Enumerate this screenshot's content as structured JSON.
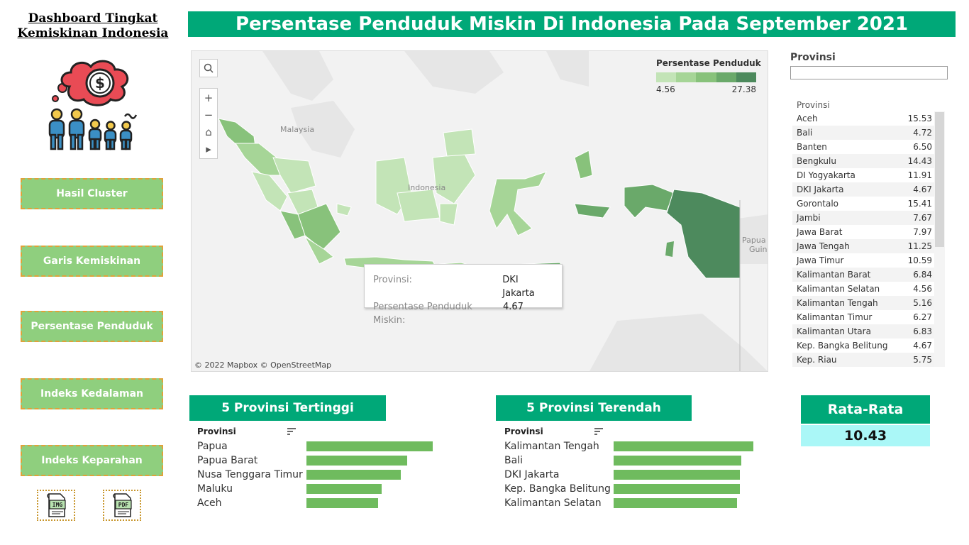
{
  "sidebar": {
    "title_line1": "Dashboard Tingkat",
    "title_line2": "Kemiskinan Indonesia",
    "nav": [
      {
        "label": "Hasil Cluster"
      },
      {
        "label": "Garis Kemiskinan"
      },
      {
        "label": "Persentase Penduduk"
      },
      {
        "label": "Indeks Kedalaman"
      },
      {
        "label": "Indeks Keparahan"
      }
    ],
    "export": {
      "img": "IMG",
      "pdf": "PDF"
    },
    "logo_icon": "poverty-people-money-icon"
  },
  "header": {
    "title": "Persentase Penduduk Miskin Di Indonesia Pada September 2021"
  },
  "map": {
    "legend_title": "Persentase Penduduk",
    "legend_min": "4.56",
    "legend_max": "27.38",
    "legend_colors": [
      "#c3e4b7",
      "#a6d597",
      "#88c27b",
      "#6aa96a",
      "#4d8a5d"
    ],
    "labels": {
      "malaysia": "Malaysia",
      "indonesia": "Indonesia",
      "papua": "Papua",
      "guinea": "Guine"
    },
    "credit": "© 2022 Mapbox  © OpenStreetMap",
    "tooltip": {
      "key1": "Provinsi:",
      "val1": "DKI Jakarta",
      "key2": "Persentase Penduduk Miskin:",
      "val2": "4.67"
    },
    "tools": [
      "search-icon",
      "zoom-in-icon",
      "zoom-out-icon",
      "home-icon",
      "play-icon"
    ]
  },
  "filter": {
    "label": "Provinsi",
    "value": ""
  },
  "province_table": {
    "header": "Provinsi",
    "rows": [
      {
        "name": "Aceh",
        "value": "15.53"
      },
      {
        "name": "Bali",
        "value": "4.72"
      },
      {
        "name": "Banten",
        "value": "6.50"
      },
      {
        "name": "Bengkulu",
        "value": "14.43"
      },
      {
        "name": "DI Yogyakarta",
        "value": "11.91"
      },
      {
        "name": "DKI Jakarta",
        "value": "4.67"
      },
      {
        "name": "Gorontalo",
        "value": "15.41"
      },
      {
        "name": "Jambi",
        "value": "7.67"
      },
      {
        "name": "Jawa Barat",
        "value": "7.97"
      },
      {
        "name": "Jawa Tengah",
        "value": "11.25"
      },
      {
        "name": "Jawa Timur",
        "value": "10.59"
      },
      {
        "name": "Kalimantan Barat",
        "value": "6.84"
      },
      {
        "name": "Kalimantan Selatan",
        "value": "4.56"
      },
      {
        "name": "Kalimantan Tengah",
        "value": "5.16"
      },
      {
        "name": "Kalimantan Timur",
        "value": "6.27"
      },
      {
        "name": "Kalimantan Utara",
        "value": "6.83"
      },
      {
        "name": "Kep. Bangka Belitung",
        "value": "4.67"
      },
      {
        "name": "Kep. Riau",
        "value": "5.75"
      }
    ]
  },
  "top5": {
    "title": "5 Provinsi Tertinggi",
    "header": "Provinsi",
    "chart_data": {
      "type": "bar",
      "categories": [
        "Papua",
        "Papua Barat",
        "Nusa Tenggara Timur",
        "Maluku",
        "Aceh"
      ],
      "values": [
        27.38,
        21.82,
        20.44,
        16.3,
        15.53
      ],
      "xlim": [
        0,
        30
      ]
    }
  },
  "bottom5": {
    "title": "5 Provinsi Terendah",
    "header": "Provinsi",
    "chart_data": {
      "type": "bar",
      "categories": [
        "Kalimantan Tengah",
        "Bali",
        "DKI Jakarta",
        "Kep. Bangka Belitung",
        "Kalimantan Selatan"
      ],
      "values": [
        5.16,
        4.72,
        4.67,
        4.67,
        4.56
      ],
      "xlim": [
        0,
        5.5
      ]
    }
  },
  "average": {
    "title": "Rata-Rata",
    "value": "10.43"
  }
}
